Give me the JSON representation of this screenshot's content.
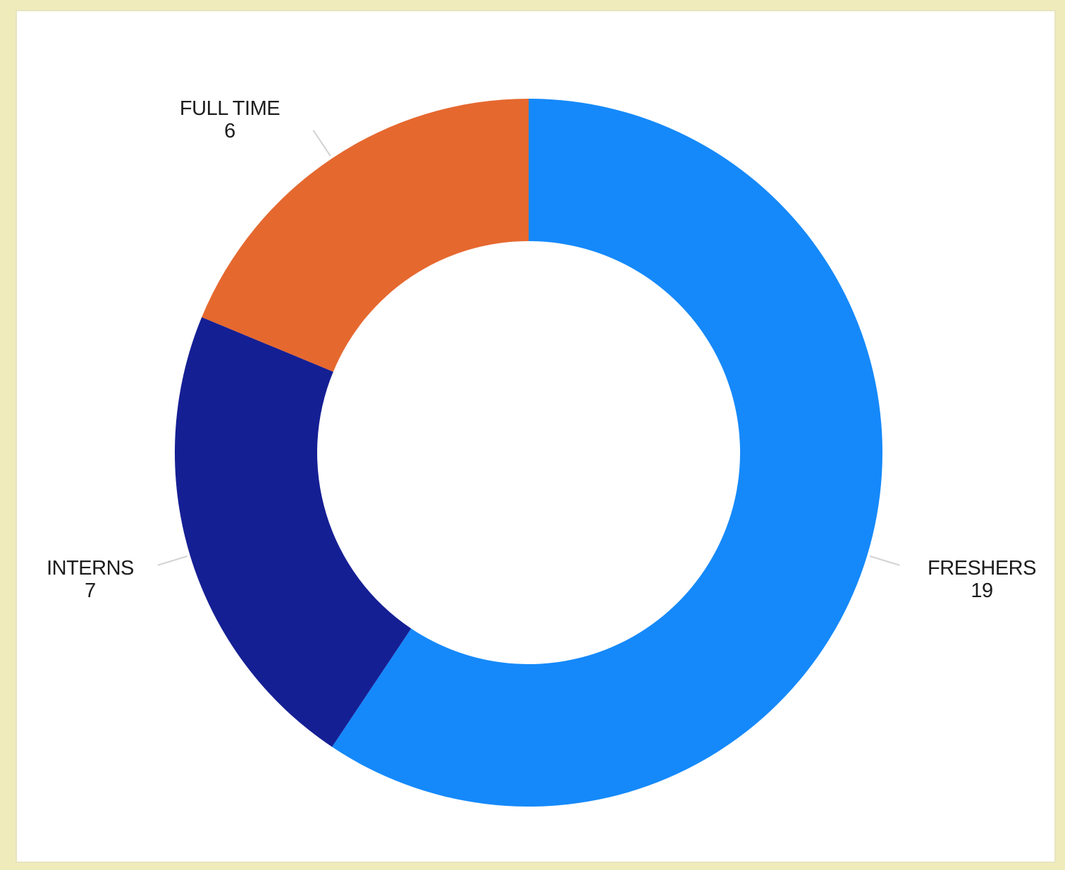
{
  "chart_data": {
    "type": "pie",
    "donut": true,
    "categories": [
      "FRESHERS",
      "INTERNS",
      "FULL TIME"
    ],
    "values": [
      19,
      7,
      6
    ],
    "value_labels": [
      "19",
      "7",
      "6"
    ],
    "colors": [
      "#1589fa",
      "#151f94",
      "#e5682f"
    ],
    "legend": "none"
  }
}
